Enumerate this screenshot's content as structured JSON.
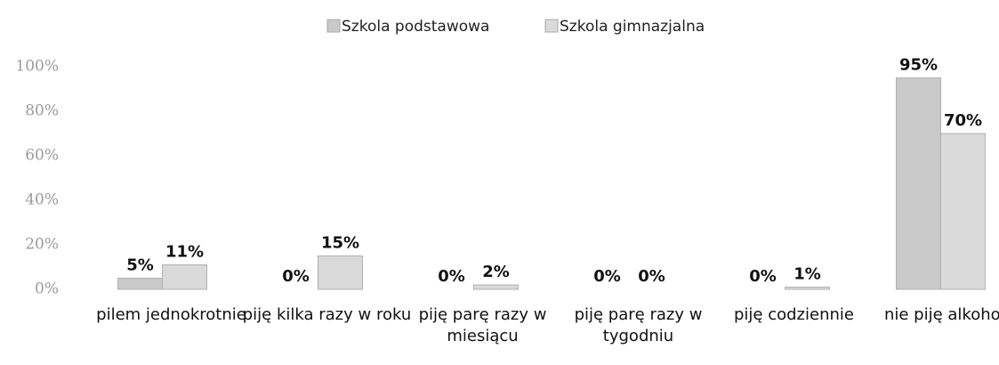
{
  "chart_data": {
    "type": "bar",
    "categories": [
      "pilem jednokrotnie",
      "piję kilka razy w roku",
      "piję parę razy w miesiącu",
      "piję parę razy w tygodniu",
      "piję codziennie",
      "nie piję alkoholu"
    ],
    "series": [
      {
        "name": "Szkola podstawowa",
        "color": "#c9c9c9",
        "values": [
          5,
          0,
          0,
          0,
          0,
          95
        ],
        "value_labels": [
          "5%",
          "0%",
          "0%",
          "0%",
          "0%",
          "95%"
        ]
      },
      {
        "name": "Szkola gimnazjalna",
        "color": "#dadada",
        "values": [
          11,
          15,
          2,
          0,
          1,
          70
        ],
        "value_labels": [
          "11%",
          "15%",
          "2%",
          "0%",
          "1%",
          "70%"
        ]
      }
    ],
    "ylim": [
      0,
      100
    ],
    "yticks": [
      {
        "value": 0,
        "label": "0%"
      },
      {
        "value": 20,
        "label": "20%"
      },
      {
        "value": 40,
        "label": "40%"
      },
      {
        "value": 60,
        "label": "60%"
      },
      {
        "value": 80,
        "label": "80%"
      },
      {
        "value": 100,
        "label": "100%"
      }
    ],
    "grid": false,
    "legend": "top"
  }
}
